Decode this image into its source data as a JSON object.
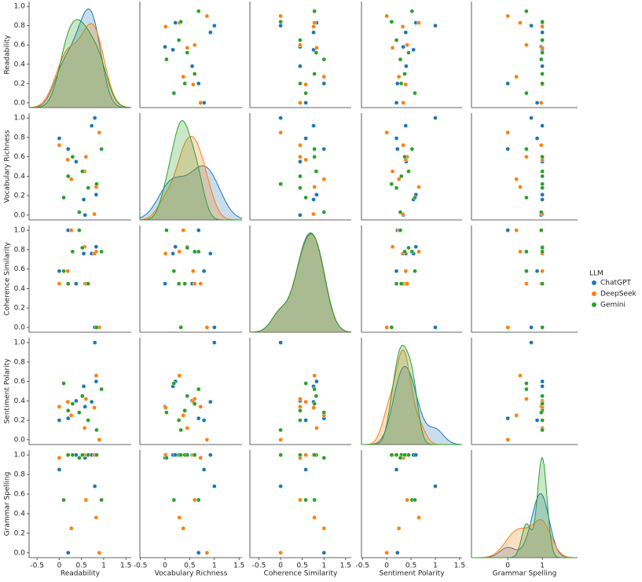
{
  "chart_data": {
    "type": "pairplot",
    "legend_title": "LLM",
    "legend_position": "right",
    "variables": [
      {
        "name": "Readability",
        "xlim": [
          -0.68,
          1.62
        ],
        "xticks": [
          -0.5,
          0.0,
          0.5,
          1.0,
          1.5
        ],
        "ylim": [
          -0.05,
          1.05
        ],
        "yticks": [
          0.0,
          0.2,
          0.4,
          0.6,
          0.8,
          1.0
        ]
      },
      {
        "name": "Vocabulary Richness",
        "xlim": [
          -0.51,
          1.56
        ],
        "xticks": [
          -0.5,
          0.0,
          0.5,
          1.0,
          1.5
        ],
        "ylim": [
          -0.05,
          1.05
        ],
        "yticks": [
          0.0,
          0.2,
          0.4,
          0.6,
          0.8,
          1.0
        ]
      },
      {
        "name": "Coherence Similarity",
        "xlim": [
          -0.71,
          1.63
        ],
        "xticks": [
          -0.5,
          0.0,
          0.5,
          1.0,
          1.5
        ],
        "ylim": [
          -0.05,
          1.05
        ],
        "yticks": [
          0.0,
          0.2,
          0.4,
          0.6,
          0.8,
          1.0
        ]
      },
      {
        "name": "Sentiment Polarity",
        "xlim": [
          -0.52,
          1.55
        ],
        "xticks": [
          -0.5,
          0.0,
          0.5,
          1.0,
          1.5
        ],
        "ylim": [
          -0.05,
          1.05
        ],
        "yticks": [
          0.0,
          0.2,
          0.4,
          0.6,
          0.8,
          1.0
        ]
      },
      {
        "name": "Grammar Spelling",
        "xlim": [
          -1.05,
          2.02
        ],
        "xticks": [
          0,
          1
        ],
        "ylim": [
          -0.05,
          1.05
        ],
        "yticks": [
          0.0,
          0.2,
          0.4,
          0.6,
          0.8,
          1.0
        ]
      }
    ],
    "series": [
      {
        "name": "ChatGPT",
        "color": "#1f77b4",
        "data": [
          [
            0.0,
            0.8,
            0.55,
            0.38,
            0.2,
            0.83,
            0.73,
            0.58
          ],
          [
            0.79,
            1.0,
            0.16,
            0.55,
            0.68,
            0.21,
            0.92,
            0.0
          ],
          [
            0.58,
            0.0,
            0.76,
            0.45,
            1.0,
            0.83,
            0.76,
            0.45
          ],
          [
            0.2,
            1.0,
            0.55,
            0.4,
            0.22,
            0.6,
            0.39,
            0.34
          ],
          [
            0.85,
            0.68,
            1.0,
            1.0,
            0.0,
            1.0,
            1.0,
            0.97
          ]
        ]
      },
      {
        "name": "DeepSeek",
        "color": "#ff7f0e",
        "data": [
          [
            0.0,
            0.9,
            0.6,
            0.27,
            0.83,
            0.57,
            0.19,
            0.79
          ],
          [
            0.72,
            0.85,
            0.6,
            0.37,
            0.29,
            0.45,
            0.57,
            0.01
          ],
          [
            0.45,
            0.0,
            0.45,
            1.0,
            0.78,
            0.83,
            0.58,
            0.76
          ],
          [
            0.34,
            0.0,
            0.42,
            0.25,
            0.66,
            0.12,
            0.39,
            0.33
          ],
          [
            0.97,
            0.0,
            0.54,
            0.25,
            0.36,
            1.0,
            1.0,
            1.0
          ]
        ]
      },
      {
        "name": "Gemini",
        "color": "#2ca02c",
        "data": [
          [
            0.2,
            0.95,
            0.45,
            0.65,
            0.1,
            0.84,
            0.52,
            0.3
          ],
          [
            0.4,
            0.68,
            0.03,
            0.28,
            0.18,
            0.32,
            0.45,
            0.6
          ],
          [
            0.45,
            0.78,
            1.0,
            0.45,
            0.58,
            0.0,
            0.82,
            0.78
          ],
          [
            0.3,
            0.52,
            0.28,
            0.2,
            0.58,
            0.1,
            0.45,
            0.37
          ],
          [
            1.0,
            0.54,
            0.97,
            1.0,
            0.54,
            1.0,
            1.0,
            1.0
          ]
        ]
      }
    ]
  }
}
